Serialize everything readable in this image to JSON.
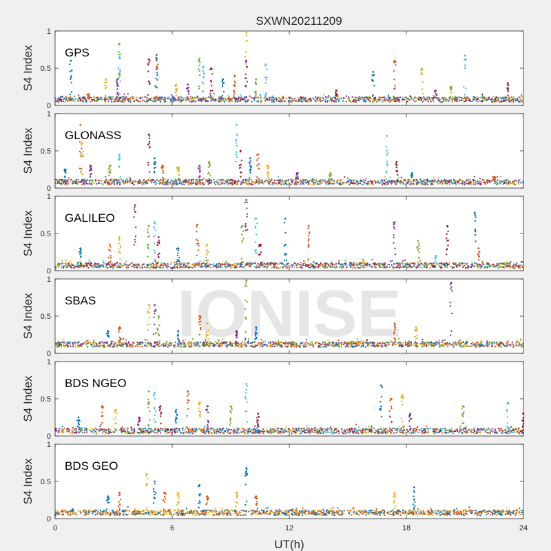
{
  "chart_data": {
    "type": "scatter",
    "title": "SXWN20211209",
    "xlabel": "UT(h)",
    "x_range": [
      0,
      24
    ],
    "x_ticks": [
      "0",
      "6",
      "12",
      "18",
      "24"
    ],
    "ylabel": "S4 Index",
    "y_range": [
      0,
      1
    ],
    "y_ticks": [
      "0",
      "0.5",
      "1"
    ],
    "watermark": "IONISE",
    "grid": false,
    "series_colors": [
      "#0072bd",
      "#d95319",
      "#edb120",
      "#7e2f8e",
      "#77ac30",
      "#4dbeee",
      "#a2142f"
    ],
    "panels": [
      {
        "label": "GPS",
        "baseline": 0.08,
        "n_colors": 7,
        "spikes": [
          {
            "x": 0.8,
            "y": 0.6
          },
          {
            "x": 1.7,
            "y": 0.15
          },
          {
            "x": 2.6,
            "y": 0.35
          },
          {
            "x": 3.2,
            "y": 0.35
          },
          {
            "x": 3.3,
            "y": 0.83
          },
          {
            "x": 3.3,
            "y": 0.65
          },
          {
            "x": 4.8,
            "y": 0.62
          },
          {
            "x": 5.2,
            "y": 0.68
          },
          {
            "x": 5.2,
            "y": 0.62
          },
          {
            "x": 6.2,
            "y": 0.28
          },
          {
            "x": 6.8,
            "y": 0.28
          },
          {
            "x": 7.4,
            "y": 0.63
          },
          {
            "x": 7.6,
            "y": 0.52
          },
          {
            "x": 8.0,
            "y": 0.5
          },
          {
            "x": 8.6,
            "y": 0.35
          },
          {
            "x": 9.2,
            "y": 0.4
          },
          {
            "x": 9.8,
            "y": 0.98
          },
          {
            "x": 9.8,
            "y": 0.6
          },
          {
            "x": 10.3,
            "y": 0.35
          },
          {
            "x": 10.8,
            "y": 0.55
          },
          {
            "x": 14.4,
            "y": 0.2
          },
          {
            "x": 16.3,
            "y": 0.45
          },
          {
            "x": 17.4,
            "y": 0.6
          },
          {
            "x": 18.8,
            "y": 0.5
          },
          {
            "x": 19.5,
            "y": 0.2
          },
          {
            "x": 20.3,
            "y": 0.25
          },
          {
            "x": 21.0,
            "y": 0.67
          },
          {
            "x": 23.2,
            "y": 0.3
          }
        ]
      },
      {
        "label": "GLONASS",
        "baseline": 0.08,
        "n_colors": 7,
        "spikes": [
          {
            "x": 0.5,
            "y": 0.25
          },
          {
            "x": 1.3,
            "y": 0.85
          },
          {
            "x": 1.4,
            "y": 0.6
          },
          {
            "x": 1.8,
            "y": 0.3
          },
          {
            "x": 2.8,
            "y": 0.3
          },
          {
            "x": 3.3,
            "y": 0.45
          },
          {
            "x": 4.8,
            "y": 0.72
          },
          {
            "x": 5.1,
            "y": 0.4
          },
          {
            "x": 5.5,
            "y": 0.3
          },
          {
            "x": 6.3,
            "y": 0.28
          },
          {
            "x": 7.4,
            "y": 0.3
          },
          {
            "x": 7.9,
            "y": 0.35
          },
          {
            "x": 9.3,
            "y": 0.85
          },
          {
            "x": 9.5,
            "y": 0.5
          },
          {
            "x": 10.0,
            "y": 0.4
          },
          {
            "x": 10.4,
            "y": 0.45
          },
          {
            "x": 10.9,
            "y": 0.3
          },
          {
            "x": 12.4,
            "y": 0.2
          },
          {
            "x": 14.1,
            "y": 0.2
          },
          {
            "x": 17.0,
            "y": 0.7
          },
          {
            "x": 17.5,
            "y": 0.35
          },
          {
            "x": 18.3,
            "y": 0.2
          },
          {
            "x": 22.5,
            "y": 0.15
          }
        ]
      },
      {
        "label": "GALILEO",
        "baseline": 0.07,
        "n_colors": 7,
        "spikes": [
          {
            "x": 1.3,
            "y": 0.3
          },
          {
            "x": 2.8,
            "y": 0.35
          },
          {
            "x": 3.3,
            "y": 0.45
          },
          {
            "x": 4.1,
            "y": 0.88
          },
          {
            "x": 4.8,
            "y": 0.6
          },
          {
            "x": 5.1,
            "y": 0.65
          },
          {
            "x": 5.3,
            "y": 0.45
          },
          {
            "x": 6.3,
            "y": 0.3
          },
          {
            "x": 7.3,
            "y": 0.62
          },
          {
            "x": 7.8,
            "y": 0.35
          },
          {
            "x": 9.8,
            "y": 0.95
          },
          {
            "x": 9.6,
            "y": 0.6
          },
          {
            "x": 10.3,
            "y": 0.7
          },
          {
            "x": 10.5,
            "y": 0.35
          },
          {
            "x": 11.8,
            "y": 0.7
          },
          {
            "x": 13.0,
            "y": 0.6
          },
          {
            "x": 15.8,
            "y": 0.15
          },
          {
            "x": 17.4,
            "y": 0.65
          },
          {
            "x": 18.6,
            "y": 0.4
          },
          {
            "x": 19.5,
            "y": 0.2
          },
          {
            "x": 20.1,
            "y": 0.6
          },
          {
            "x": 21.5,
            "y": 0.78
          },
          {
            "x": 21.7,
            "y": 0.3
          }
        ]
      },
      {
        "label": "SBAS",
        "baseline": 0.12,
        "n_colors": 5,
        "spikes": [
          {
            "x": 2.7,
            "y": 0.3
          },
          {
            "x": 3.3,
            "y": 0.35
          },
          {
            "x": 4.8,
            "y": 0.65
          },
          {
            "x": 5.1,
            "y": 0.65
          },
          {
            "x": 5.3,
            "y": 0.5
          },
          {
            "x": 6.3,
            "y": 0.3
          },
          {
            "x": 7.4,
            "y": 0.5
          },
          {
            "x": 7.8,
            "y": 0.4
          },
          {
            "x": 9.3,
            "y": 0.3
          },
          {
            "x": 9.8,
            "y": 0.98
          },
          {
            "x": 10.3,
            "y": 0.35
          },
          {
            "x": 17.4,
            "y": 0.4
          },
          {
            "x": 18.5,
            "y": 0.35
          },
          {
            "x": 20.3,
            "y": 0.95
          }
        ]
      },
      {
        "label": "BDS NGEO",
        "baseline": 0.07,
        "n_colors": 7,
        "spikes": [
          {
            "x": 1.2,
            "y": 0.25
          },
          {
            "x": 2.4,
            "y": 0.4
          },
          {
            "x": 3.1,
            "y": 0.35
          },
          {
            "x": 4.3,
            "y": 0.25
          },
          {
            "x": 4.8,
            "y": 0.6
          },
          {
            "x": 5.1,
            "y": 0.58
          },
          {
            "x": 5.4,
            "y": 0.4
          },
          {
            "x": 6.2,
            "y": 0.35
          },
          {
            "x": 6.8,
            "y": 0.6
          },
          {
            "x": 7.4,
            "y": 0.45
          },
          {
            "x": 7.8,
            "y": 0.4
          },
          {
            "x": 9.0,
            "y": 0.4
          },
          {
            "x": 9.8,
            "y": 0.7
          },
          {
            "x": 10.4,
            "y": 0.3
          },
          {
            "x": 16.7,
            "y": 0.68
          },
          {
            "x": 17.2,
            "y": 0.5
          },
          {
            "x": 17.8,
            "y": 0.55
          },
          {
            "x": 18.2,
            "y": 0.3
          },
          {
            "x": 20.9,
            "y": 0.4
          },
          {
            "x": 23.2,
            "y": 0.45
          },
          {
            "x": 24.0,
            "y": 0.3
          }
        ]
      },
      {
        "label": "BDS GEO",
        "baseline": 0.08,
        "n_colors": 3,
        "spikes": [
          {
            "x": 2.7,
            "y": 0.3
          },
          {
            "x": 3.3,
            "y": 0.35
          },
          {
            "x": 4.7,
            "y": 0.6
          },
          {
            "x": 5.1,
            "y": 0.5
          },
          {
            "x": 5.6,
            "y": 0.35
          },
          {
            "x": 6.3,
            "y": 0.35
          },
          {
            "x": 7.4,
            "y": 0.45
          },
          {
            "x": 7.8,
            "y": 0.3
          },
          {
            "x": 9.3,
            "y": 0.35
          },
          {
            "x": 9.8,
            "y": 0.68
          },
          {
            "x": 10.3,
            "y": 0.3
          },
          {
            "x": 17.4,
            "y": 0.35
          },
          {
            "x": 18.4,
            "y": 0.42
          }
        ]
      }
    ]
  }
}
